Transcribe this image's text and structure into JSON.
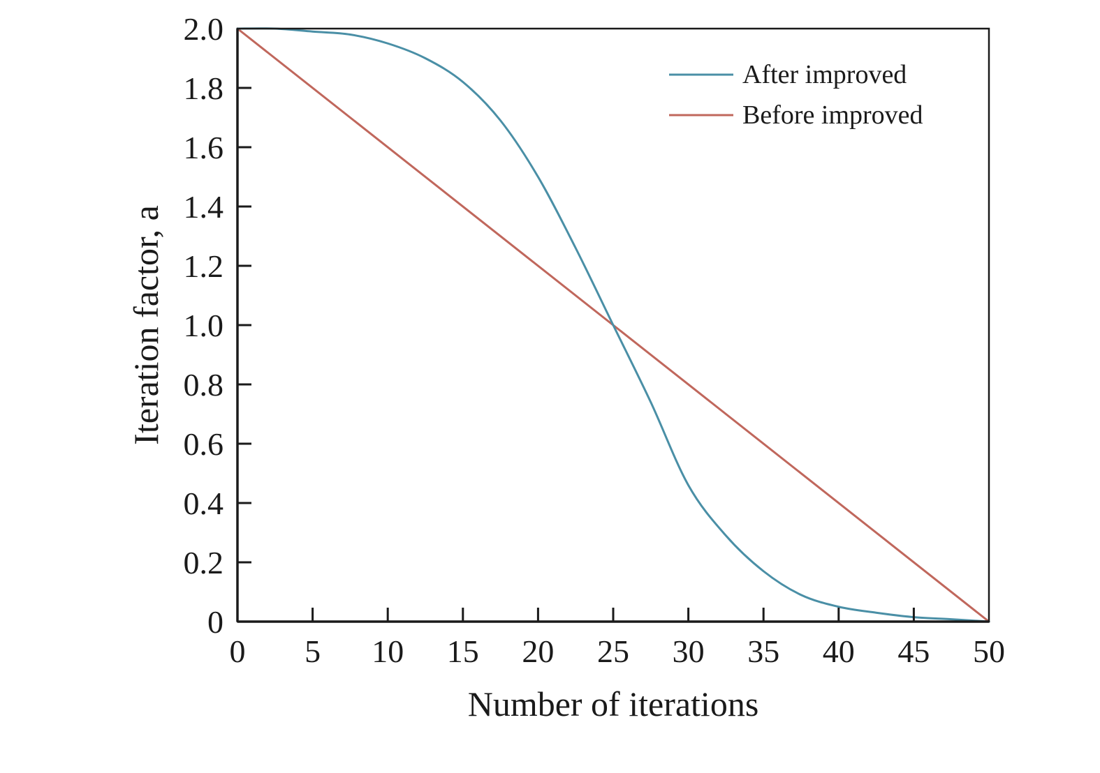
{
  "chart_data": {
    "type": "line",
    "xlabel": "Number of iterations",
    "ylabel": "Iteration factor, a",
    "xlim": [
      0,
      50
    ],
    "ylim": [
      0,
      2.0
    ],
    "x_ticks": [
      0,
      5,
      10,
      15,
      20,
      25,
      30,
      35,
      40,
      45,
      50
    ],
    "x_tick_labels": [
      "0",
      "5",
      "10",
      "15",
      "20",
      "25",
      "30",
      "35",
      "40",
      "45",
      "50"
    ],
    "y_ticks": [
      0,
      0.2,
      0.4,
      0.6,
      0.8,
      1.0,
      1.2,
      1.4,
      1.6,
      1.8,
      2.0
    ],
    "y_tick_labels": [
      "0",
      "0.2",
      "0.4",
      "0.6",
      "0.8",
      "1.0",
      "1.2",
      "1.4",
      "1.6",
      "1.8",
      "2.0"
    ],
    "grid": false,
    "legend_position": "top-right",
    "series": [
      {
        "name": "After improved",
        "color": "#4a8fa6",
        "x": [
          0,
          2.5,
          5,
          7.5,
          10,
          12.5,
          15,
          17.5,
          20,
          22.5,
          25,
          27.5,
          30,
          32.5,
          35,
          37.5,
          40,
          42.5,
          45,
          47.5,
          50
        ],
        "y": [
          2.0,
          2.0,
          1.99,
          1.98,
          1.95,
          1.9,
          1.82,
          1.69,
          1.5,
          1.26,
          1.0,
          0.74,
          0.46,
          0.29,
          0.17,
          0.09,
          0.05,
          0.03,
          0.015,
          0.008,
          0.0
        ]
      },
      {
        "name": "Before improved",
        "color": "#c0675c",
        "x": [
          0,
          50
        ],
        "y": [
          2.0,
          0.0
        ]
      }
    ]
  }
}
